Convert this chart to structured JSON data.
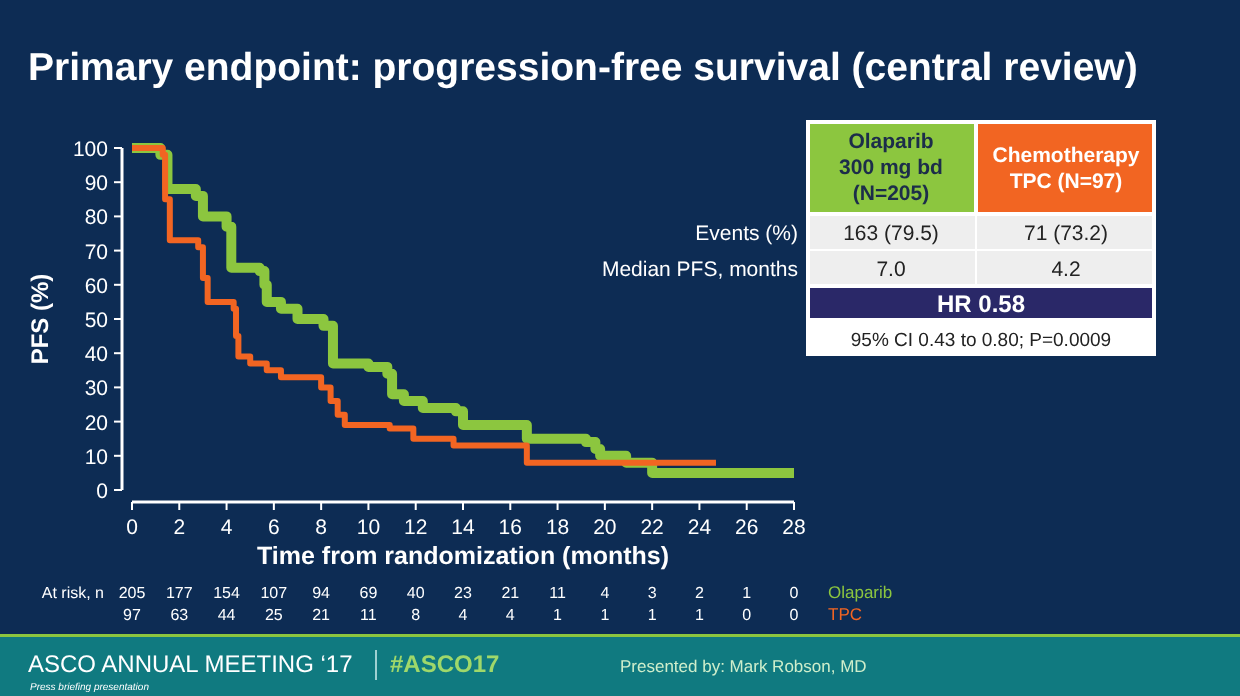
{
  "chart_data": {
    "type": "step",
    "title": "Primary endpoint: progression-free survival (central review)",
    "xlabel": "Time from randomization (months)",
    "ylabel": "PFS (%)",
    "xlim": [
      0,
      28
    ],
    "xticks": [
      0,
      2,
      4,
      6,
      8,
      10,
      12,
      14,
      16,
      18,
      20,
      22,
      24,
      26,
      28
    ],
    "ylim": [
      0,
      100
    ],
    "yticks": [
      0,
      10,
      20,
      30,
      40,
      50,
      60,
      70,
      80,
      90,
      100
    ],
    "grid": false,
    "line_style": "solid",
    "series": [
      {
        "name": "Olaparib",
        "color": "#8cc63f",
        "x": [
          0,
          1.2,
          1.5,
          2.7,
          3.0,
          4.0,
          4.2,
          5.4,
          5.6,
          5.7,
          6.3,
          7.0,
          8.1,
          8.5,
          10.0,
          10.8,
          11.0,
          11.5,
          12.3,
          13.7,
          14.0,
          16.3,
          16.7,
          19.2,
          19.6,
          19.8,
          20.9,
          22.0,
          28
        ],
        "values": [
          100,
          98,
          88,
          86,
          80,
          77,
          65,
          64,
          60,
          55,
          53,
          50,
          48,
          37,
          36,
          34,
          28,
          26,
          24,
          23,
          19,
          19,
          15,
          14,
          12,
          10,
          8,
          5,
          5
        ]
      },
      {
        "name": "TPC",
        "color": "#f26522",
        "x": [
          0,
          1.3,
          1.4,
          1.6,
          2.8,
          3.0,
          3.2,
          4.3,
          4.4,
          4.5,
          5.0,
          5.7,
          6.3,
          8.0,
          8.4,
          8.7,
          9.0,
          10.9,
          11.9,
          13.6,
          16.3,
          16.7,
          24.7
        ],
        "values": [
          100,
          98,
          85,
          73,
          71,
          62,
          55,
          53,
          45,
          39,
          37,
          35,
          33,
          30,
          26,
          22,
          19,
          18,
          15,
          13,
          13,
          8,
          8
        ]
      }
    ],
    "annotations": [
      "Olaparib\n300 mg bd\n(N=205)",
      "Chemotherapy\nTPC (N=97)",
      "Events (%)",
      "163 (79.5)",
      "71 (73.2)",
      "Median PFS, months",
      "7.0",
      "4.2",
      "HR 0.58",
      "95% CI 0.43 to 0.80; P=0.0009",
      "At risk, n",
      "205 177 154 107 94 69 40 23 21 11 4 3 2 1 0",
      "97 63 44 25 21 11 8 4 4 1 1 1 1 0 0",
      "ASCO ANNUAL MEETING ‘17",
      "#ASCO17",
      "Press briefing presentation",
      "Presented by: Mark Robson, MD"
    ]
  }
}
